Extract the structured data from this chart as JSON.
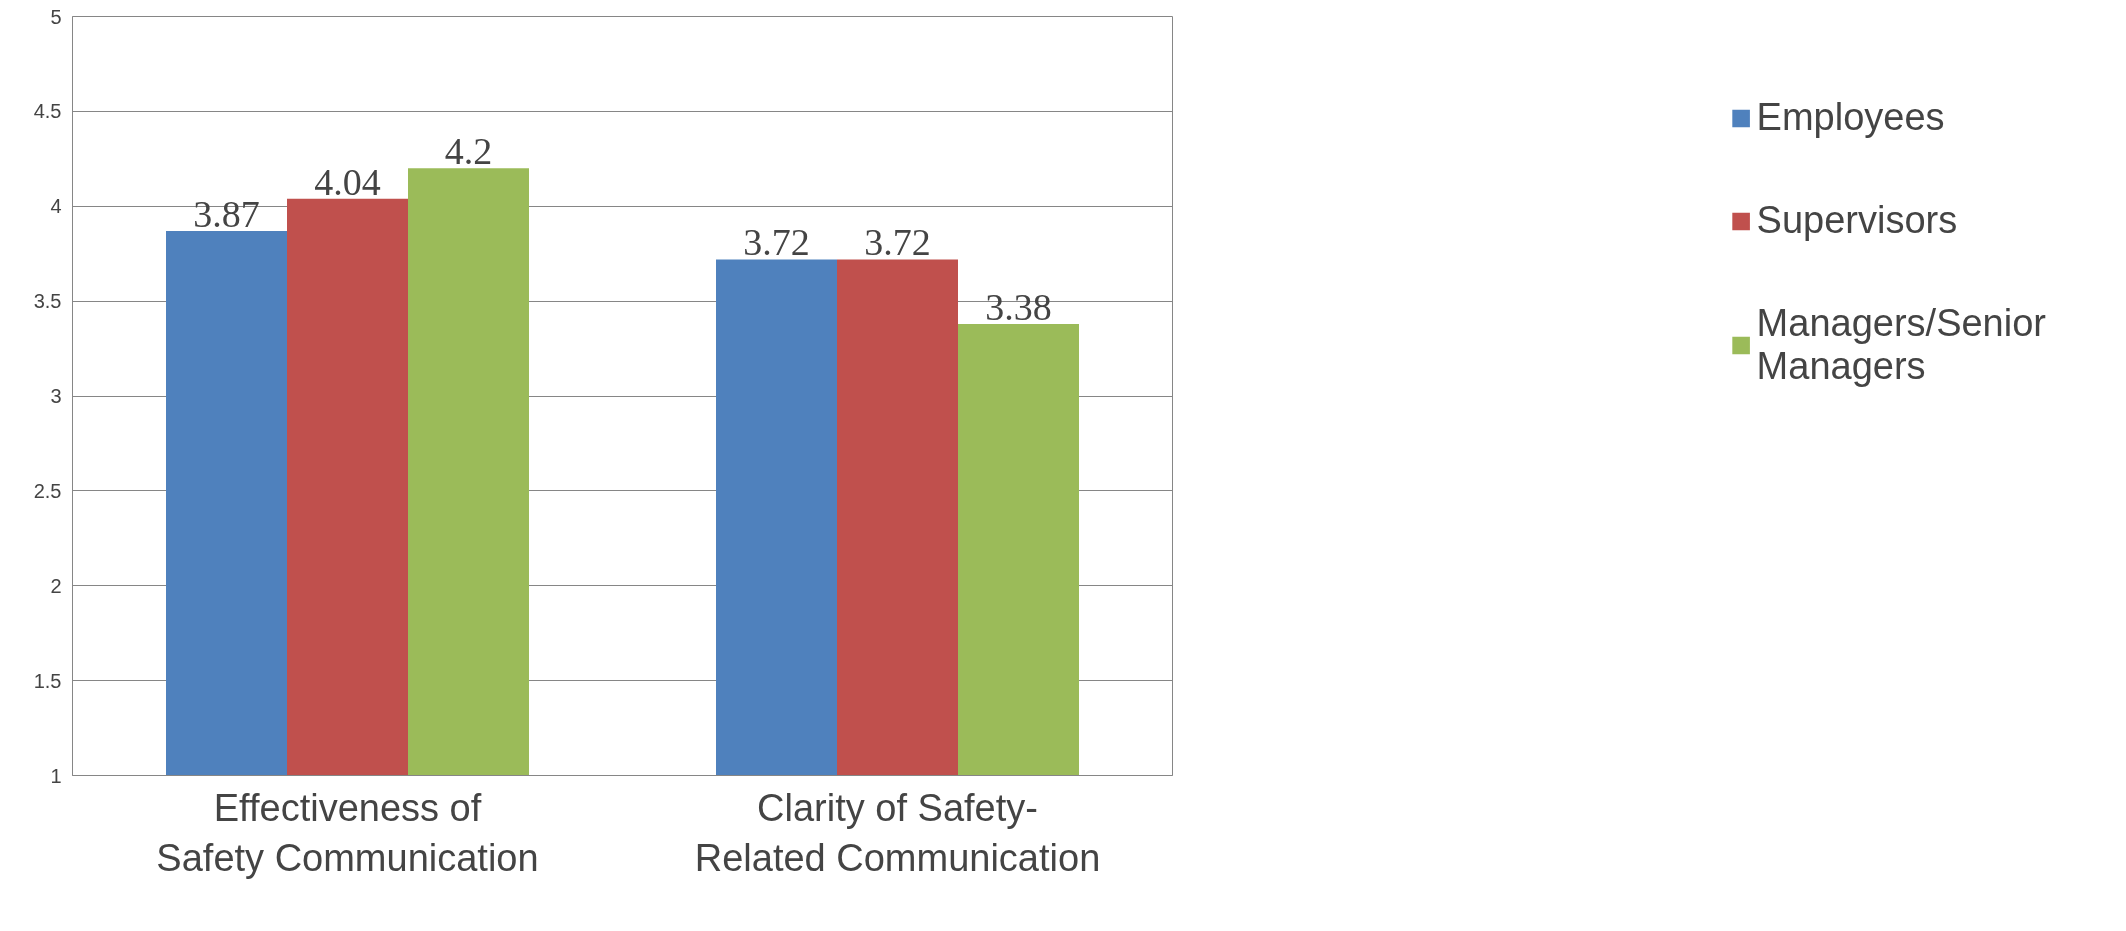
{
  "chart_data": {
    "type": "bar",
    "categories": [
      "Effectiveness of Safety Communication",
      "Clarity of Safety-Related Communication"
    ],
    "series": [
      {
        "name": "Employees",
        "color": "#4f81bd",
        "values": [
          3.87,
          3.72
        ]
      },
      {
        "name": "Supervisors",
        "color": "#c0504d",
        "values": [
          4.04,
          3.72
        ]
      },
      {
        "name": "Managers/Senior Managers",
        "color": "#9bbb59",
        "values": [
          4.2,
          3.38
        ]
      }
    ],
    "ylim": [
      1,
      5
    ],
    "yticks": [
      1,
      1.5,
      2,
      2.5,
      3,
      3.5,
      4,
      4.5,
      5
    ],
    "grid": "y",
    "legend": "right",
    "data_labels": true
  }
}
